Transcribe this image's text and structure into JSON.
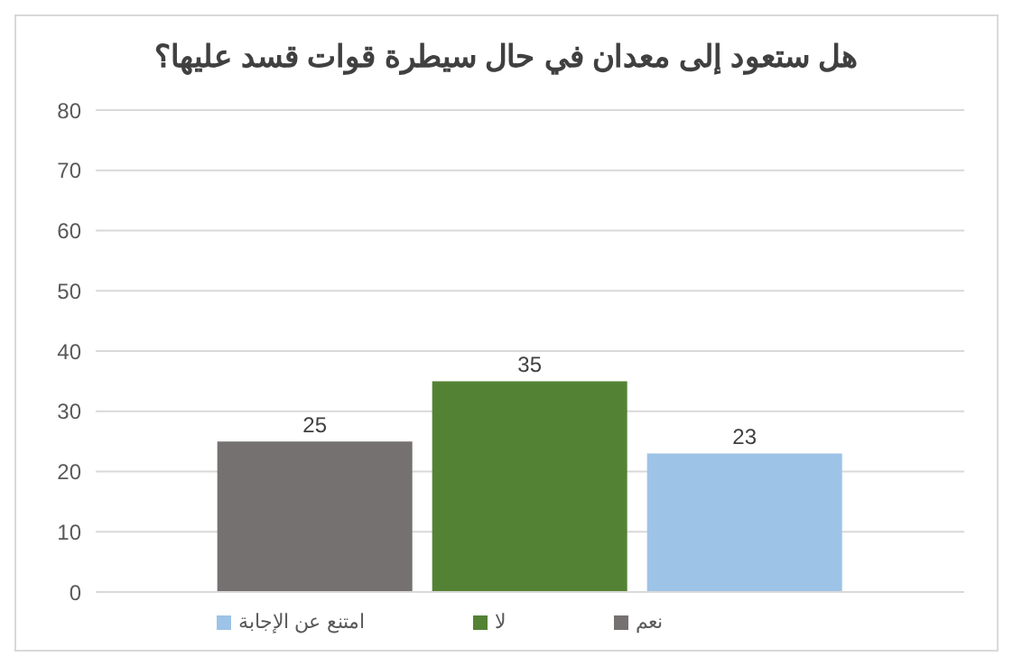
{
  "chart_data": {
    "type": "bar",
    "title": "هل ستعود إلى معدان في حال سيطرة قوات قسد عليها؟",
    "categories": [
      null
    ],
    "series": [
      {
        "name": "نعم",
        "color": "#767171",
        "values": [
          25
        ]
      },
      {
        "name": "لا",
        "color": "#548235",
        "values": [
          35
        ]
      },
      {
        "name": "امتنع عن الإجابة",
        "color": "#9dc3e6",
        "values": [
          23
        ]
      }
    ],
    "ylim": [
      0,
      80
    ],
    "yticks": [
      0,
      10,
      20,
      30,
      40,
      50,
      60,
      70,
      80
    ],
    "grid": "y",
    "legend": "bottom",
    "data_labels": true
  }
}
